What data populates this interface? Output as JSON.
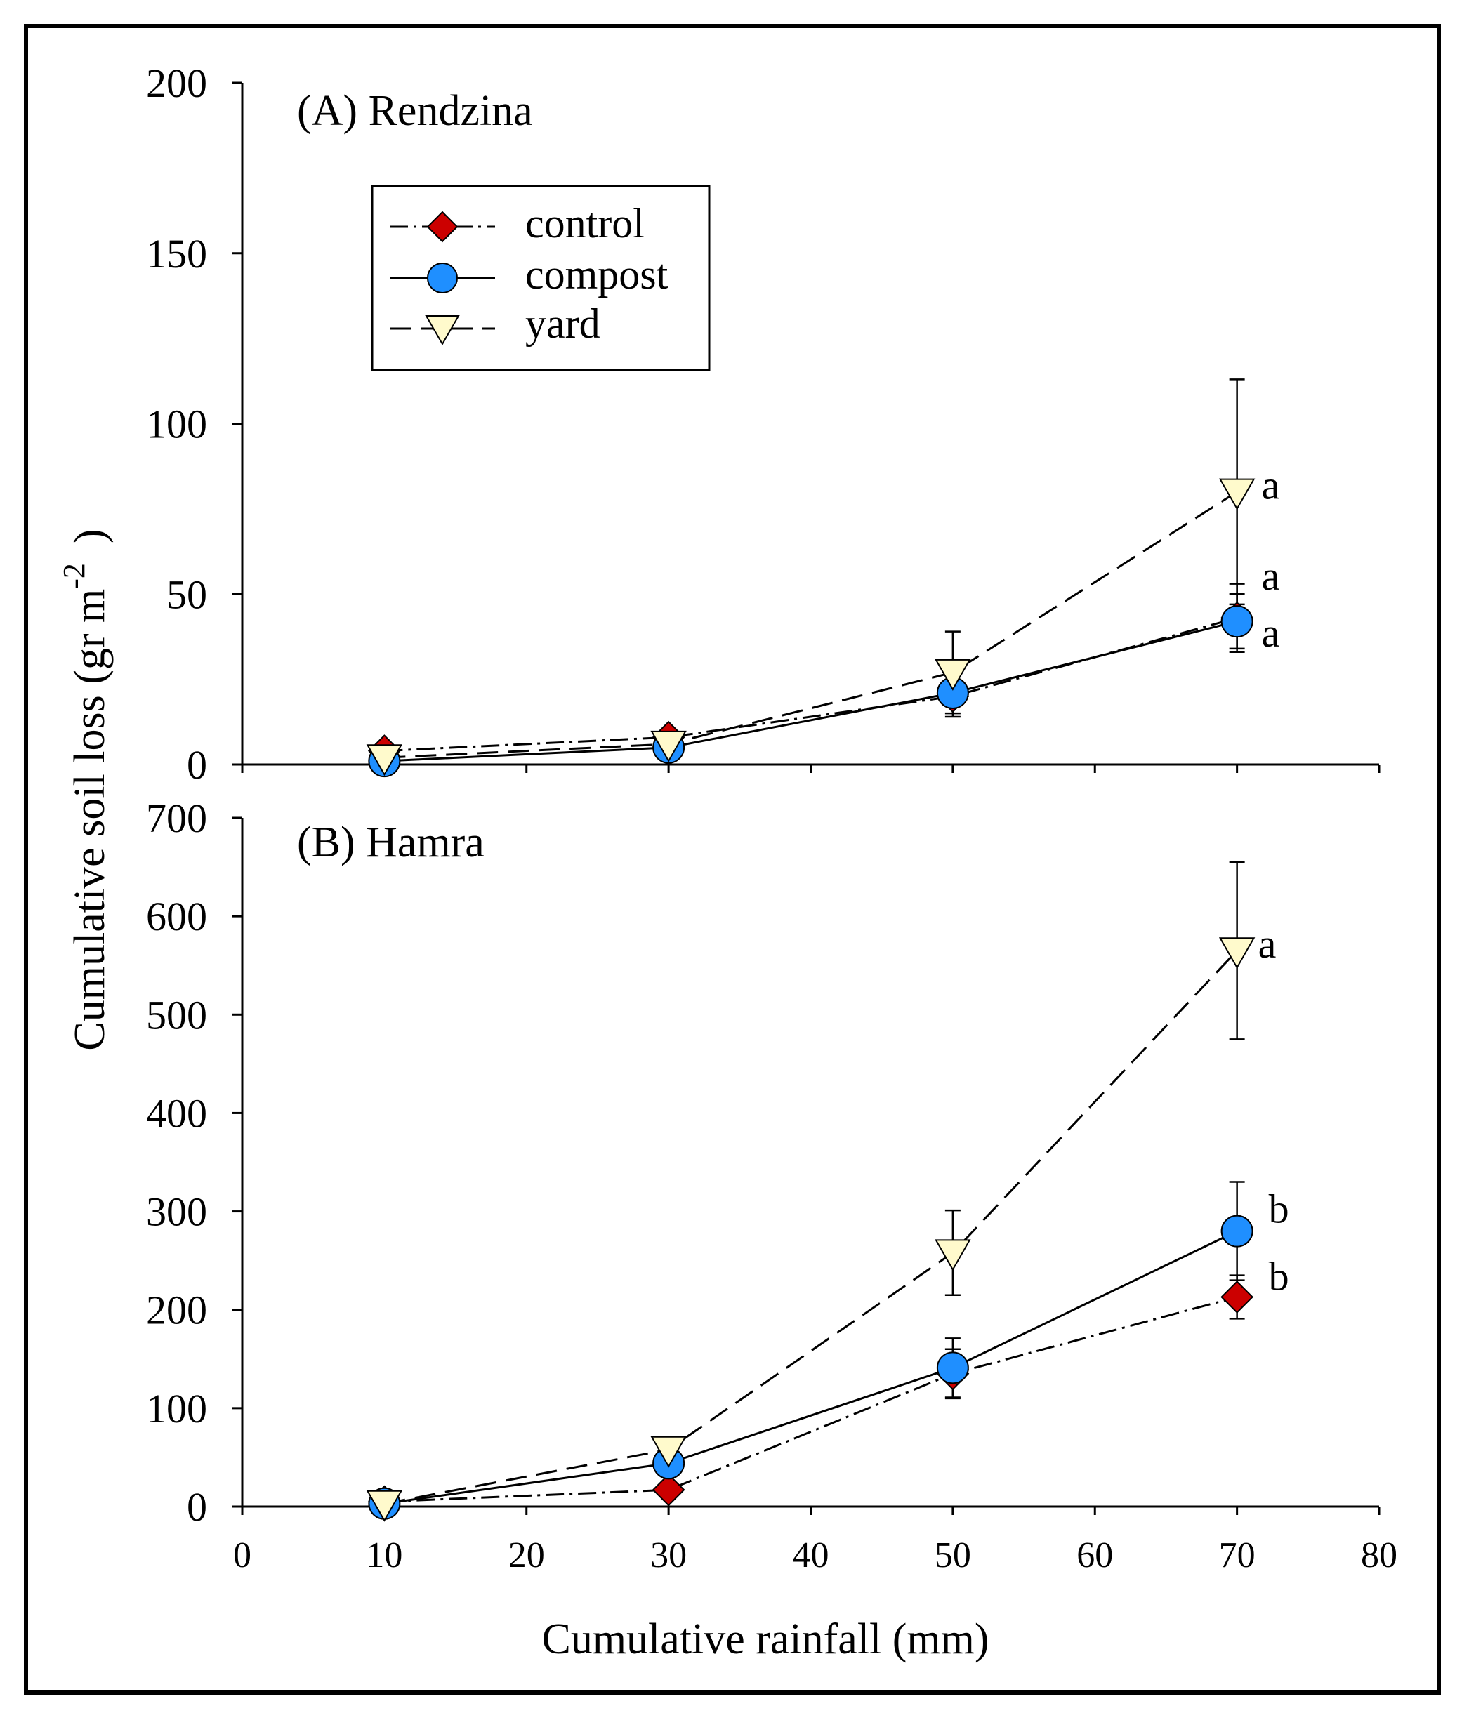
{
  "chart_data": [
    {
      "type": "line",
      "title": "(A) Rendzina",
      "xlabel": "",
      "ylabel": "Cumulative soil loss (gr m-2 )",
      "ylabel_parts": {
        "main": "Cumulative soil loss (gr m",
        "sup": "-2",
        "close": ")"
      },
      "x": [
        10,
        30,
        50,
        70
      ],
      "xlim": [
        0,
        80
      ],
      "ylim": [
        0,
        200
      ],
      "yticks": [
        "0",
        "50",
        "100",
        "150",
        "200"
      ],
      "series": [
        {
          "name": "control",
          "values": [
            4,
            8,
            20,
            43
          ],
          "err": [
            1,
            1,
            6,
            10
          ],
          "color": "#cc0000",
          "marker": "diamond",
          "dash": "dashdot",
          "letter": "a"
        },
        {
          "name": "compost",
          "values": [
            1,
            5,
            21,
            42
          ],
          "err": [
            0.5,
            1,
            3,
            8
          ],
          "color": "#1f8fff",
          "marker": "circle",
          "dash": "solid",
          "letter": "a"
        },
        {
          "name": "yard",
          "values": [
            2,
            6,
            27,
            80
          ],
          "err": [
            0.5,
            1,
            12,
            33
          ],
          "color": "#fffacc",
          "marker": "triangle-down",
          "dash": "dashed",
          "letter": "a"
        }
      ]
    },
    {
      "type": "line",
      "title": "(B) Hamra",
      "xlabel": "Cumulative rainfall (mm)",
      "x": [
        10,
        30,
        50,
        70
      ],
      "xlim": [
        0,
        80
      ],
      "ylim": [
        0,
        700
      ],
      "xticks": [
        "0",
        "10",
        "20",
        "30",
        "40",
        "50",
        "60",
        "70",
        "80"
      ],
      "yticks": [
        "0",
        "100",
        "200",
        "300",
        "400",
        "500",
        "600",
        "700"
      ],
      "series": [
        {
          "name": "control",
          "values": [
            5,
            17,
            135,
            213
          ],
          "err": [
            2,
            3,
            25,
            22
          ],
          "color": "#cc0000",
          "marker": "diamond",
          "dash": "dashdot",
          "letter": "b"
        },
        {
          "name": "compost",
          "values": [
            3,
            44,
            141,
            280
          ],
          "err": [
            1,
            5,
            30,
            50
          ],
          "color": "#1f8fff",
          "marker": "circle",
          "dash": "solid",
          "letter": "b"
        },
        {
          "name": "yard",
          "values": [
            3,
            58,
            258,
            565
          ],
          "err": [
            1,
            5,
            43,
            90
          ],
          "color": "#fffacc",
          "marker": "triangle-down",
          "dash": "dashed",
          "letter": "a"
        }
      ]
    }
  ],
  "legend": {
    "items": [
      {
        "label": "control",
        "marker": "diamond",
        "color": "#cc0000"
      },
      {
        "label": "compost",
        "marker": "circle",
        "color": "#1f8fff"
      },
      {
        "label": "yard",
        "marker": "triangle-down",
        "color": "#fffacc"
      }
    ]
  }
}
